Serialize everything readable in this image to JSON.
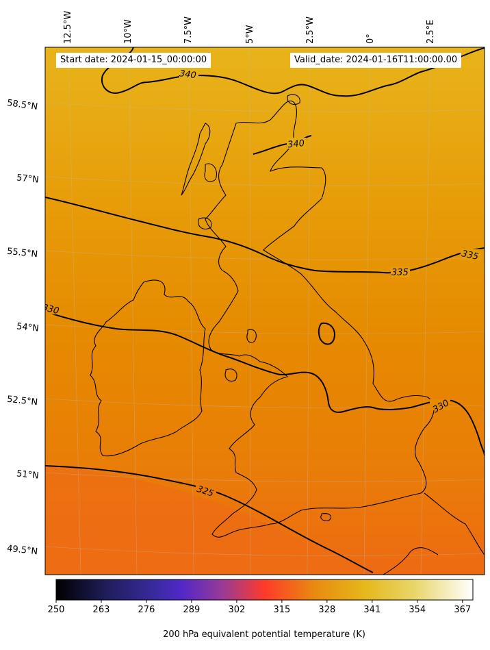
{
  "map": {
    "variable_label": "200 hPa equivalent potential temperature (K)",
    "start_date": "Start date: 2024-01-15_00:00:00",
    "valid_date": "Valid_date: 2024-01-16T11:00:00.00",
    "longitude_labels": [
      "12.5°W",
      "10°W",
      "7.5°W",
      "5°W",
      "2.5°W",
      "0°",
      "2.5°E"
    ],
    "latitude_labels": [
      "58.5°N",
      "57°N",
      "55.5°N",
      "54°N",
      "52.5°N",
      "51°N",
      "49.5°N"
    ],
    "contour_labels": [
      "340",
      "340",
      "335",
      "335",
      "330",
      "330",
      "325"
    ],
    "colorbar": {
      "ticks": [
        "250",
        "263",
        "276",
        "289",
        "302",
        "315",
        "328",
        "341",
        "354",
        "367"
      ],
      "min": 250,
      "max": 370,
      "colormap": "CMRmap"
    },
    "colors": {
      "field_north": "#e6b318",
      "field_mid": "#e68a00",
      "field_south": "#ec6a10",
      "contour": "#000000"
    }
  }
}
